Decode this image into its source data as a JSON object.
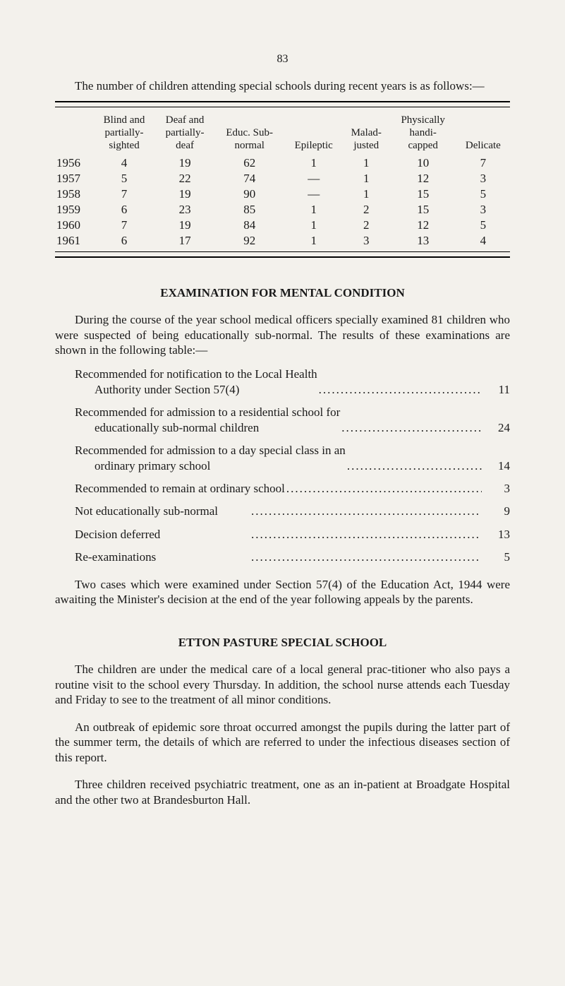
{
  "page": {
    "number": "83"
  },
  "intro": "The number of children attending special schools during recent years is as follows:—",
  "table": {
    "columns": [
      "",
      "Blind and partially-sighted",
      "Deaf and partially-deaf",
      "Educ. Sub-normal",
      "Epileptic",
      "Malad-justed",
      "Physically handi-capped",
      "Delicate"
    ],
    "header_lines": {
      "c1": [
        "Blind and",
        "partially-",
        "sighted"
      ],
      "c2": [
        "Deaf and",
        "partially-",
        "deaf"
      ],
      "c3": [
        "",
        "Educ. Sub-",
        "normal"
      ],
      "c4": [
        "",
        "",
        "Epileptic"
      ],
      "c5": [
        "",
        "Malad-",
        "justed"
      ],
      "c6": [
        "Physically",
        "handi-",
        "capped"
      ],
      "c7": [
        "",
        "",
        "Delicate"
      ]
    },
    "rows": [
      {
        "year": "1956",
        "c1": "4",
        "c2": "19",
        "c3": "62",
        "c4": "1",
        "c5": "1",
        "c6": "10",
        "c7": "7"
      },
      {
        "year": "1957",
        "c1": "5",
        "c2": "22",
        "c3": "74",
        "c4": "—",
        "c5": "1",
        "c6": "12",
        "c7": "3"
      },
      {
        "year": "1958",
        "c1": "7",
        "c2": "19",
        "c3": "90",
        "c4": "—",
        "c5": "1",
        "c6": "15",
        "c7": "5"
      },
      {
        "year": "1959",
        "c1": "6",
        "c2": "23",
        "c3": "85",
        "c4": "1",
        "c5": "2",
        "c6": "15",
        "c7": "3"
      },
      {
        "year": "1960",
        "c1": "7",
        "c2": "19",
        "c3": "84",
        "c4": "1",
        "c5": "2",
        "c6": "12",
        "c7": "5"
      },
      {
        "year": "1961",
        "c1": "6",
        "c2": "17",
        "c3": "92",
        "c4": "1",
        "c5": "3",
        "c6": "13",
        "c7": "4"
      }
    ]
  },
  "sections": {
    "exam": {
      "heading": "EXAMINATION FOR MENTAL CONDITION",
      "para1": "During the course of the year school medical officers specially examined 81 children who were suspected of being educationally sub-normal. The results of these examinations are shown in the following table:—",
      "items": [
        {
          "label_l1": "Recommended for notification to the Local Health",
          "label_l2": "Authority under Section 57(4)",
          "value": "11"
        },
        {
          "label_l1": "Recommended for admission to a residential school for",
          "label_l2": "educationally sub-normal children",
          "value": "24"
        },
        {
          "label_l1": "Recommended for admission to a day special class in an",
          "label_l2": "ordinary primary school",
          "value": "14"
        },
        {
          "label_l1": "Recommended to remain at ordinary school",
          "label_l2": "",
          "value": "3"
        },
        {
          "label_l1": "Not educationally sub-normal",
          "label_l2": "",
          "value": "9"
        },
        {
          "label_l1": "Decision deferred",
          "label_l2": "",
          "value": "13"
        },
        {
          "label_l1": "Re-examinations",
          "label_l2": "",
          "value": "5"
        }
      ],
      "para2": "Two cases which were examined under Section 57(4) of the Education Act, 1944 were awaiting the Minister's decision at the end of the year following appeals by the parents."
    },
    "etton": {
      "heading": "ETTON PASTURE SPECIAL SCHOOL",
      "para1": "The children are under the medical care of a local general prac-titioner who also pays a routine visit to the school every Thursday. In addition, the school nurse attends each Tuesday and Friday to see to the treatment of all minor conditions.",
      "para2": "An outbreak of epidemic sore throat occurred amongst the pupils during the latter part of the summer term, the details of which are referred to under the infectious diseases section of this report.",
      "para3": "Three children received psychiatric treatment, one as an in-patient at Broadgate Hospital and the other two at Brandesburton Hall."
    }
  },
  "dots": "...................................................."
}
